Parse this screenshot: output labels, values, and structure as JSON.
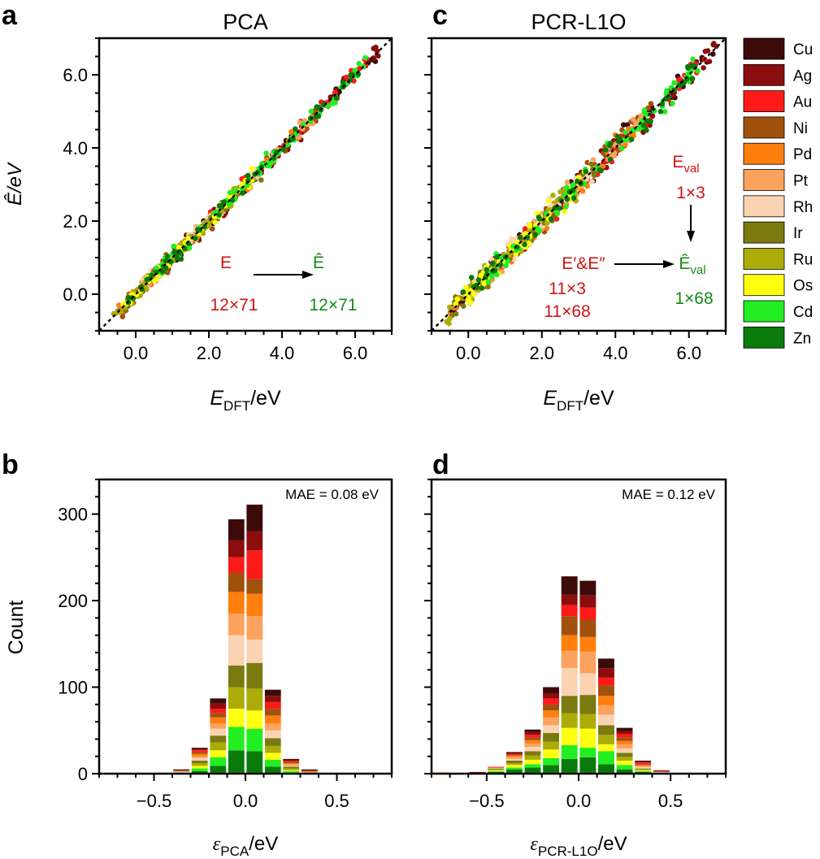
{
  "colors": {
    "Cu": "#3d0a0a",
    "Ag": "#8b0d0d",
    "Au": "#ff1a1a",
    "Ni": "#a0520d",
    "Pd": "#ff7f0e",
    "Pt": "#fba35e",
    "Rh": "#fbd3b2",
    "Ir": "#7a7a10",
    "Ru": "#acac08",
    "Os": "#ffff10",
    "Cd": "#22ee22",
    "Zn": "#0a7a0a",
    "red_text": "#d11414",
    "green_text": "#168a16"
  },
  "legend": {
    "entries": [
      "Cu",
      "Ag",
      "Au",
      "Ni",
      "Pd",
      "Pt",
      "Rh",
      "Ir",
      "Ru",
      "Os",
      "Cd",
      "Zn"
    ]
  },
  "annotations": {
    "a": {
      "e": "E",
      "ehat": "Ê",
      "dim_left": "12×71",
      "dim_right": "12×71"
    },
    "c": {
      "eval": "E",
      "eval_sub": "val",
      "eval_dim": "1×3",
      "epp": "E′&E″",
      "epp_dim1": "11×3",
      "epp_dim2": "11×68",
      "ehat_val": "Ê",
      "ehat_val_sub": "val",
      "ehat_val_dim": "1×68"
    },
    "b": {
      "mae": "MAE = 0.08 eV"
    },
    "d": {
      "mae": "MAE = 0.12 eV"
    }
  },
  "chart_data": [
    {
      "panel": "a",
      "type": "scatter",
      "title": "PCA",
      "xlabel": "E",
      "xlabel_sub": "DFT",
      "xlabel_unit": "/eV",
      "ylabel": "Ê/eV",
      "xlim": [
        -1.0,
        7.0
      ],
      "ylim": [
        -1.0,
        7.0
      ],
      "xticks": [
        "0.0",
        "2.0",
        "4.0",
        "6.0"
      ],
      "yticks": [
        "0.0",
        "2.0",
        "4.0",
        "6.0"
      ],
      "series_note": "points cluster along y = x (parity line), RMS scatter ≈ 0.1 eV, one group per metal",
      "parity_line": [
        [
          -1.0,
          -1.0
        ],
        [
          7.0,
          7.0
        ]
      ]
    },
    {
      "panel": "c",
      "type": "scatter",
      "title": "PCR-L1O",
      "xlabel": "E",
      "xlabel_sub": "DFT",
      "xlabel_unit": "/eV",
      "xlim": [
        -1.0,
        7.0
      ],
      "ylim": [
        -1.0,
        7.0
      ],
      "xticks": [
        "0.0",
        "2.0",
        "4.0",
        "6.0"
      ],
      "series_note": "points cluster along y = x (parity line), RMS scatter ≈ 0.15 eV, one group per metal",
      "parity_line": [
        [
          -1.0,
          -1.0
        ],
        [
          7.0,
          7.0
        ]
      ]
    },
    {
      "panel": "b",
      "type": "bar",
      "stacked": true,
      "xlabel": "ε",
      "xlabel_sub": "PCA",
      "xlabel_unit": "/eV",
      "ylabel": "Count",
      "xlim": [
        -0.8,
        0.8
      ],
      "ylim": [
        0,
        340
      ],
      "xticks": [
        "−0.5",
        "0.0",
        "0.5"
      ],
      "yticks": [
        "0",
        "100",
        "200",
        "300"
      ],
      "categories": [
        -0.45,
        -0.35,
        -0.25,
        -0.15,
        -0.05,
        0.05,
        0.15,
        0.25,
        0.35
      ],
      "totals": [
        1,
        5,
        30,
        87,
        294,
        311,
        97,
        17,
        5
      ],
      "series": [
        {
          "name": "Zn",
          "values": [
            0,
            0,
            3,
            9,
            27,
            26,
            8,
            1,
            0
          ]
        },
        {
          "name": "Cd",
          "values": [
            0,
            0,
            3,
            10,
            27,
            26,
            8,
            2,
            0
          ]
        },
        {
          "name": "Os",
          "values": [
            0,
            1,
            3,
            8,
            21,
            21,
            8,
            1,
            1
          ]
        },
        {
          "name": "Ru",
          "values": [
            0,
            0,
            3,
            9,
            25,
            25,
            8,
            2,
            0
          ]
        },
        {
          "name": "Ir",
          "values": [
            0,
            0,
            3,
            8,
            25,
            30,
            9,
            2,
            0
          ]
        },
        {
          "name": "Rh",
          "values": [
            0,
            1,
            3,
            8,
            35,
            27,
            9,
            1,
            0
          ]
        },
        {
          "name": "Pt",
          "values": [
            0,
            1,
            2,
            6,
            25,
            27,
            8,
            2,
            1
          ]
        },
        {
          "name": "Pd",
          "values": [
            0,
            0,
            3,
            7,
            25,
            26,
            9,
            1,
            1
          ]
        },
        {
          "name": "Ni",
          "values": [
            0,
            1,
            2,
            5,
            22,
            17,
            8,
            2,
            0
          ]
        },
        {
          "name": "Au",
          "values": [
            1,
            0,
            2,
            5,
            18,
            33,
            8,
            1,
            0
          ]
        },
        {
          "name": "Ag",
          "values": [
            0,
            0,
            2,
            6,
            20,
            22,
            7,
            1,
            1
          ]
        },
        {
          "name": "Cu",
          "values": [
            0,
            1,
            1,
            6,
            24,
            31,
            7,
            1,
            1
          ]
        }
      ]
    },
    {
      "panel": "d",
      "type": "bar",
      "stacked": true,
      "xlabel": "ε",
      "xlabel_sub": "PCR-L1O",
      "xlabel_unit": "/eV",
      "xlim": [
        -0.8,
        0.8
      ],
      "ylim": [
        0,
        340
      ],
      "xticks": [
        "−0.5",
        "0.0",
        "0.5"
      ],
      "yticks": [
        "0",
        "100",
        "200",
        "300"
      ],
      "categories": [
        -0.75,
        -0.65,
        -0.55,
        -0.45,
        -0.35,
        -0.25,
        -0.15,
        -0.05,
        0.05,
        0.15,
        0.25,
        0.35,
        0.45
      ],
      "totals": [
        2,
        0,
        2,
        8,
        25,
        51,
        100,
        228,
        223,
        133,
        53,
        15,
        4
      ],
      "series": [
        {
          "name": "Zn",
          "values": [
            1,
            0,
            1,
            2,
            5,
            7,
            10,
            17,
            19,
            11,
            5,
            2,
            0
          ]
        },
        {
          "name": "Cd",
          "values": [
            0,
            0,
            0,
            1,
            2,
            4,
            8,
            16,
            11,
            15,
            5,
            1,
            1
          ]
        },
        {
          "name": "Os",
          "values": [
            0,
            0,
            0,
            1,
            3,
            5,
            10,
            20,
            22,
            8,
            5,
            1,
            0
          ]
        },
        {
          "name": "Ru",
          "values": [
            0,
            0,
            0,
            1,
            2,
            5,
            9,
            17,
            17,
            11,
            4,
            1,
            0
          ]
        },
        {
          "name": "Ir",
          "values": [
            0,
            0,
            0,
            1,
            3,
            5,
            10,
            20,
            22,
            11,
            5,
            1,
            0
          ]
        },
        {
          "name": "Rh",
          "values": [
            1,
            0,
            0,
            1,
            2,
            5,
            9,
            32,
            25,
            12,
            5,
            2,
            1
          ]
        },
        {
          "name": "Pt",
          "values": [
            0,
            0,
            0,
            0,
            2,
            4,
            9,
            20,
            25,
            11,
            5,
            1,
            0
          ]
        },
        {
          "name": "Pd",
          "values": [
            0,
            0,
            0,
            0,
            2,
            4,
            8,
            18,
            17,
            11,
            4,
            1,
            0
          ]
        },
        {
          "name": "Ni",
          "values": [
            0,
            0,
            0,
            0,
            1,
            3,
            7,
            22,
            20,
            12,
            4,
            1,
            1
          ]
        },
        {
          "name": "Au",
          "values": [
            0,
            0,
            0,
            1,
            1,
            3,
            7,
            13,
            14,
            9,
            4,
            2,
            0
          ]
        },
        {
          "name": "Ag",
          "values": [
            0,
            0,
            1,
            0,
            1,
            3,
            6,
            12,
            14,
            11,
            3,
            1,
            1
          ]
        },
        {
          "name": "Cu",
          "values": [
            0,
            0,
            0,
            0,
            1,
            3,
            7,
            21,
            17,
            11,
            4,
            1,
            0
          ]
        }
      ]
    }
  ],
  "panel_labels": {
    "a": "a",
    "b": "b",
    "c": "c",
    "d": "d"
  }
}
